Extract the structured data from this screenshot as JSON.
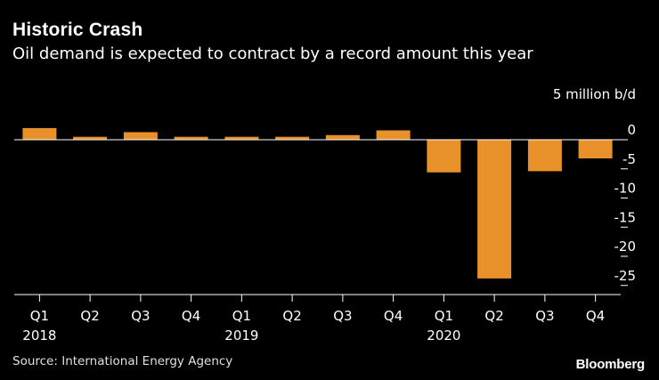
{
  "header": {
    "title": "Historic Crash",
    "subtitle": "Oil demand is expected to contract by a record amount this year"
  },
  "footer": {
    "source": "Source: International Energy Agency",
    "brand": "Bloomberg"
  },
  "colors": {
    "bar": "#E8912A",
    "background": "#000000",
    "text": "#FFFFFF"
  },
  "chart_data": {
    "type": "bar",
    "title": "Historic Crash",
    "subtitle": "Oil demand is expected to contract by a record amount this year",
    "ylabel": "5 million b/d",
    "xlabel": "",
    "categories": [
      "Q1",
      "Q2",
      "Q3",
      "Q4",
      "Q1",
      "Q2",
      "Q3",
      "Q4",
      "Q1",
      "Q2",
      "Q3",
      "Q4"
    ],
    "year_labels": [
      {
        "index": 0,
        "label": "2018"
      },
      {
        "index": 4,
        "label": "2019"
      },
      {
        "index": 8,
        "label": "2020"
      }
    ],
    "values": [
      2.0,
      0.5,
      1.3,
      0.5,
      0.5,
      0.5,
      0.8,
      1.6,
      -5.6,
      -23.8,
      -5.4,
      -3.2
    ],
    "ylim": [
      -26.5,
      2.5
    ],
    "yticks": [
      0,
      -5,
      -10,
      -15,
      -20,
      -25
    ],
    "ytick_labels": [
      "0",
      "-5",
      "-10",
      "-15",
      "-20",
      "-25"
    ],
    "grid": false,
    "legend": "none"
  }
}
